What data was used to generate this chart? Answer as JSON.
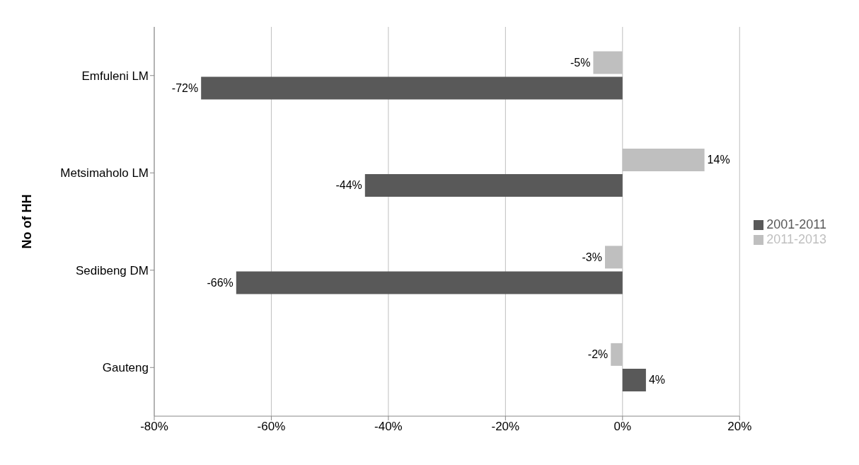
{
  "chart_data": {
    "type": "bar",
    "orientation": "horizontal",
    "ylabel": "No of HH",
    "categories": [
      "Emfuleni LM",
      "Metsimaholo LM",
      "Sedibeng DM",
      "Gauteng"
    ],
    "series": [
      {
        "name": "2011-2013",
        "color": "#bfbfbf",
        "values": [
          -5,
          14,
          -3,
          -2
        ],
        "value_labels": [
          "-5%",
          "14%",
          "-3%",
          "-2%"
        ]
      },
      {
        "name": "2001-2011",
        "color": "#595959",
        "values": [
          -72,
          -44,
          -66,
          4
        ],
        "value_labels": [
          "-72%",
          "-44%",
          "-66%",
          "4%"
        ]
      }
    ],
    "xlim": [
      -80,
      20
    ],
    "xticks": [
      {
        "value": -80,
        "label": "-80%"
      },
      {
        "value": -60,
        "label": "-60%"
      },
      {
        "value": -40,
        "label": "-40%"
      },
      {
        "value": -20,
        "label": "-20%"
      },
      {
        "value": 0,
        "label": "0%"
      },
      {
        "value": 20,
        "label": "20%"
      }
    ],
    "grid": "x",
    "legend": "right"
  }
}
